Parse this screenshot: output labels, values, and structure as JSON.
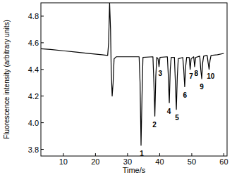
{
  "chart_data": {
    "type": "line",
    "x_label": "Time/s",
    "y_label": "Fluorescence intensity (arbitrary units)",
    "xlim": [
      3,
      61
    ],
    "xticks": [
      10,
      20,
      30,
      40,
      50,
      60
    ],
    "ylim": [
      3.75,
      4.9
    ],
    "yticks": [
      3.8,
      {
        "value": 4,
        "label": "4.0"
      },
      4.2,
      4.4,
      4.6,
      4.8
    ],
    "color": "#000000",
    "x": [
      3,
      6,
      10,
      14,
      18,
      22,
      23.8,
      24.1,
      24.4,
      24.7,
      24.9,
      25.2,
      25.5,
      25.8,
      26.5,
      30,
      33.6,
      33.9,
      34.2,
      34.5,
      34.8,
      37.9,
      38.2,
      38.5,
      38.8,
      39.1,
      39.5,
      39.8,
      40.1,
      42.4,
      42.7,
      43.0,
      43.3,
      43.6,
      44.6,
      44.9,
      45.2,
      45.5,
      45.8,
      47.2,
      47.5,
      47.8,
      48.1,
      48.4,
      49.2,
      49.5,
      49.8,
      50.6,
      50.9,
      51.2,
      52.5,
      52.8,
      53.1,
      53.4,
      53.7,
      54.8,
      55.1,
      55.4,
      55.7,
      56,
      58,
      60
    ],
    "values": [
      4.555,
      4.55,
      4.54,
      4.53,
      4.52,
      4.51,
      4.505,
      4.6,
      4.9,
      4.7,
      4.4,
      4.2,
      4.3,
      4.48,
      4.495,
      4.495,
      4.495,
      4.3,
      3.83,
      4.2,
      4.49,
      4.495,
      4.3,
      4.05,
      4.35,
      4.49,
      4.48,
      4.42,
      4.49,
      4.495,
      4.35,
      4.15,
      4.4,
      4.49,
      4.49,
      4.3,
      4.1,
      4.35,
      4.48,
      4.49,
      4.4,
      4.27,
      4.42,
      4.49,
      4.49,
      4.4,
      4.48,
      4.495,
      4.42,
      4.49,
      4.5,
      4.4,
      4.33,
      4.45,
      4.5,
      4.505,
      4.45,
      4.4,
      4.47,
      4.505,
      4.51,
      4.52
    ],
    "annotations": [
      {
        "text": "1",
        "x": 34.4,
        "y": 3.77
      },
      {
        "text": "2",
        "x": 38.4,
        "y": 3.99
      },
      {
        "text": "3",
        "x": 40.2,
        "y": 4.37
      },
      {
        "text": "4",
        "x": 42.9,
        "y": 4.09
      },
      {
        "text": "5",
        "x": 45.4,
        "y": 4.04
      },
      {
        "text": "6",
        "x": 47.9,
        "y": 4.21
      },
      {
        "text": "7",
        "x": 49.8,
        "y": 4.35
      },
      {
        "text": "8",
        "x": 51.4,
        "y": 4.37
      },
      {
        "text": "9",
        "x": 53.1,
        "y": 4.27
      },
      {
        "text": "10",
        "x": 55.9,
        "y": 4.35
      }
    ]
  }
}
